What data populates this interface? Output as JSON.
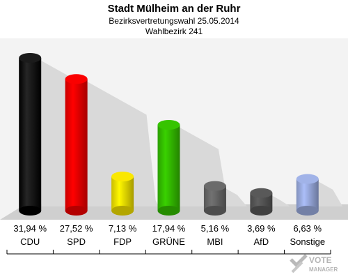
{
  "header": {
    "title": "Stadt Mülheim an der Ruhr",
    "subtitle": "Bezirksvertretungswahl 25.05.2014",
    "subtitle2": "Wahlbezirk 241"
  },
  "chart_data": {
    "type": "bar",
    "title": "Stadt Mülheim an der Ruhr",
    "categories": [
      "CDU",
      "SPD",
      "FDP",
      "GRÜNE",
      "MBI",
      "AfD",
      "Sonstige"
    ],
    "values": [
      31.94,
      27.52,
      7.13,
      17.94,
      5.16,
      3.69,
      6.63
    ],
    "value_labels": [
      "31,94 %",
      "27,52 %",
      "7,13 %",
      "17,94 %",
      "5,16 %",
      "3,69 %",
      "6,63 %"
    ],
    "colors": [
      "#000000",
      "#ee0000",
      "#eedd00",
      "#33bb00",
      "#666666",
      "#555555",
      "#99aadd"
    ],
    "ylim": [
      0,
      35
    ],
    "grid": false,
    "xlabel": "",
    "ylabel": ""
  },
  "watermark": {
    "line1": "VOTE",
    "line2": "MANAGER",
    "icon": "vote-manager-logo-icon"
  }
}
